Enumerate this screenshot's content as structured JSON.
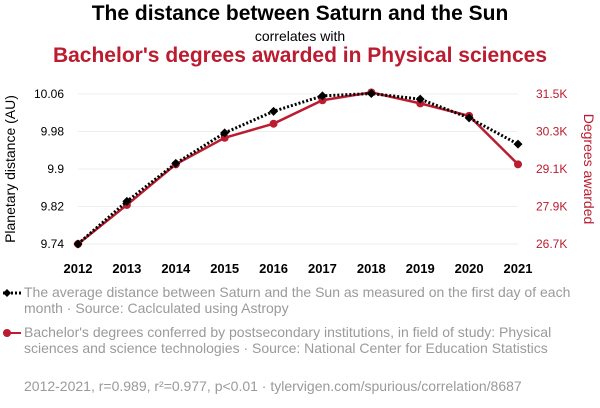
{
  "header": {
    "title": "The distance between Saturn and the Sun",
    "connector": "correlates with",
    "subtitle": "Bachelor's degrees awarded in Physical sciences"
  },
  "colors": {
    "series1": "#000000",
    "series2": "#bb1c30",
    "muted": "#9a9a9a"
  },
  "chart_data": {
    "type": "line",
    "title": "The distance between Saturn and the Sun correlates with Bachelor's degrees awarded in Physical sciences",
    "x": [
      "2012",
      "2013",
      "2014",
      "2015",
      "2016",
      "2017",
      "2018",
      "2019",
      "2020",
      "2021"
    ],
    "series": [
      {
        "name": "The distance between Saturn and the Sun",
        "axis": "left",
        "values": [
          9.74,
          9.831,
          9.912,
          9.977,
          10.023,
          10.056,
          10.061,
          10.049,
          10.009,
          9.953
        ],
        "marker": "diamond",
        "style": "dotted"
      },
      {
        "name": "Bachelor's degrees awarded in Physical sciences",
        "axis": "right",
        "values": [
          26700,
          27950,
          29250,
          30100,
          30550,
          31300,
          31550,
          31200,
          30800,
          29250
        ],
        "marker": "circle",
        "style": "solid"
      }
    ],
    "ylabel": "Planetary distance (AU)",
    "ylabel_right": "Degrees awarded",
    "ylim": [
      9.74,
      10.06
    ],
    "ylim_right": [
      26700,
      31500
    ],
    "yticks": [
      "9.74",
      "9.82",
      "9.9",
      "9.98",
      "10.06"
    ],
    "yticks_right": [
      "26.7K",
      "27.9K",
      "29.1K",
      "30.3K",
      "31.5K"
    ],
    "grid": true
  },
  "legend": [
    {
      "text": "The average distance between Saturn and the Sun as measured on the first day of each month · Source: Caclculated using Astropy"
    },
    {
      "text": "Bachelor's degrees conferred by postsecondary institutions, in field of study: Physical sciences and science technologies · Source: National Center for Education Statistics"
    }
  ],
  "footer": "2012-2021, r=0.989, r²=0.977, p<0.01 · tylervigen.com/spurious/correlation/8687"
}
